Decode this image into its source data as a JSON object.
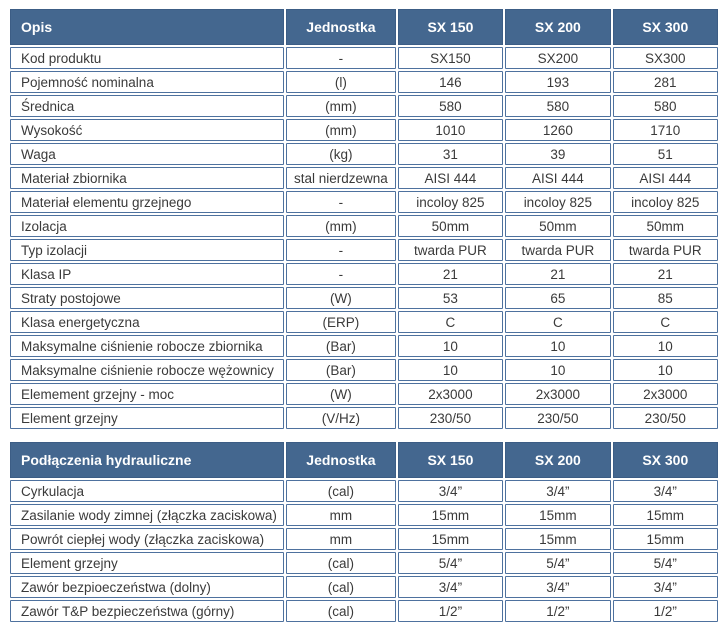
{
  "colors": {
    "header_background": "#44678f",
    "header_text": "#ffffff",
    "header_border": "#3c5d85",
    "cell_border": "#4e719e",
    "body_text": "#3a3a3a",
    "page_background": "#ffffff"
  },
  "tables": [
    {
      "name": "specifications",
      "headers": [
        "Opis",
        "Jednostka",
        "SX 150",
        "SX 200",
        "SX 300"
      ],
      "rows": [
        [
          "Kod produktu",
          "-",
          "SX150",
          "SX200",
          "SX300"
        ],
        [
          "Pojemność nominalna",
          "(l)",
          "146",
          "193",
          "281"
        ],
        [
          "Średnica",
          "(mm)",
          "580",
          "580",
          "580"
        ],
        [
          "Wysokość",
          "(mm)",
          "1010",
          "1260",
          "1710"
        ],
        [
          "Waga",
          "(kg)",
          "31",
          "39",
          "51"
        ],
        [
          "Materiał zbiornika",
          "stal nierdzewna",
          "AISI 444",
          "AISI 444",
          "AISI 444"
        ],
        [
          "Materiał elementu grzejnego",
          "-",
          "incoloy 825",
          "incoloy 825",
          "incoloy 825"
        ],
        [
          "Izolacja",
          "(mm)",
          "50mm",
          "50mm",
          "50mm"
        ],
        [
          "Typ izolacji",
          "-",
          "twarda PUR",
          "twarda PUR",
          "twarda PUR"
        ],
        [
          "Klasa IP",
          "-",
          "21",
          "21",
          "21"
        ],
        [
          "Straty postojowe",
          "(W)",
          "53",
          "65",
          "85"
        ],
        [
          "Klasa energetyczna",
          "(ERP)",
          "C",
          "C",
          "C"
        ],
        [
          "Maksymalne ciśnienie robocze zbiornika",
          "(Bar)",
          "10",
          "10",
          "10"
        ],
        [
          "Maksymalne ciśnienie robocze wężownicy",
          "(Bar)",
          "10",
          "10",
          "10"
        ],
        [
          "Elemement grzejny - moc",
          "(W)",
          "2x3000",
          "2x3000",
          "2x3000"
        ],
        [
          "Element grzejny",
          "(V/Hz)",
          "230/50",
          "230/50",
          "230/50"
        ]
      ]
    },
    {
      "name": "hydraulic-connections",
      "headers": [
        "Podłączenia hydrauliczne",
        "Jednostka",
        "SX 150",
        "SX 200",
        "SX 300"
      ],
      "rows": [
        [
          "Cyrkulacja",
          "(cal)",
          "3/4”",
          "3/4”",
          "3/4”"
        ],
        [
          "Zasilanie wody zimnej (złączka zaciskowa)",
          "mm",
          "15mm",
          "15mm",
          "15mm"
        ],
        [
          "Powrót ciepłej wody (złączka zaciskowa)",
          "mm",
          "15mm",
          "15mm",
          "15mm"
        ],
        [
          "Element grzejny",
          "(cal)",
          "5/4”",
          "5/4”",
          "5/4”"
        ],
        [
          "Zawór bezpioeczeństwa (dolny)",
          "(cal)",
          "3/4”",
          "3/4”",
          "3/4”"
        ],
        [
          "Zawór T&P bezpieczeństwa (górny)",
          "(cal)",
          "1/2”",
          "1/2”",
          "1/2”"
        ]
      ]
    }
  ]
}
